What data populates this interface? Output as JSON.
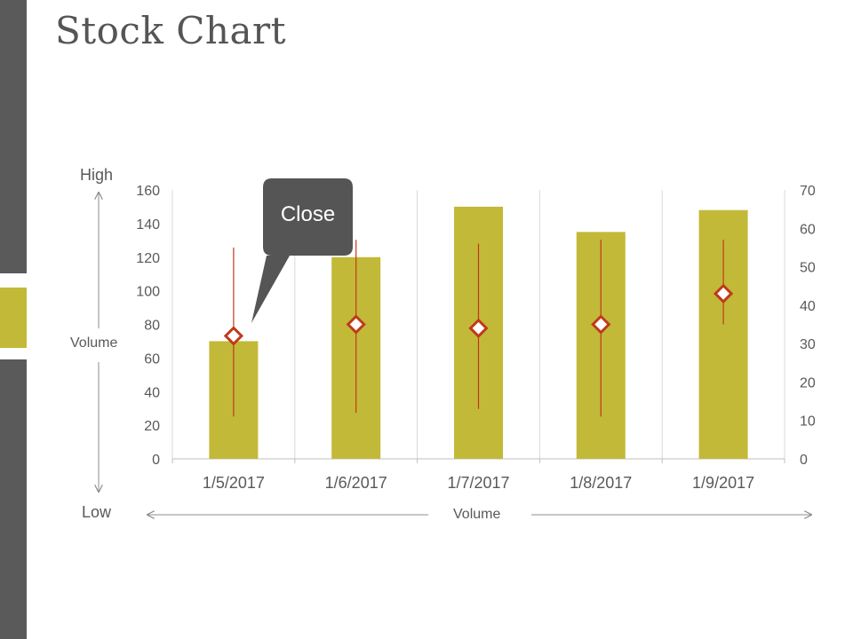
{
  "colors": {
    "bar": "#c2b938",
    "stem": "#c0391b",
    "marker_stroke": "#c0391b",
    "marker_fill": "#ffffff",
    "callout": "#555555",
    "sidebar": "#5a5a5a",
    "sidebar_accent": "#c2b938",
    "gridline": "#d9d9d9",
    "axis_text": "#595959"
  },
  "page": {
    "title": "Stock Chart"
  },
  "annotations": {
    "high": "High",
    "low": "Low",
    "volume_left": "Volume",
    "volume_bottom": "Volume",
    "callout": "Close"
  },
  "chart_data": {
    "type": "bar",
    "categories": [
      "1/5/2017",
      "1/6/2017",
      "1/7/2017",
      "1/8/2017",
      "1/9/2017"
    ],
    "ylim": [
      0,
      160
    ],
    "y2lim": [
      0,
      70
    ],
    "yticks": [
      "0",
      "20",
      "40",
      "60",
      "80",
      "100",
      "120",
      "140",
      "160"
    ],
    "y2ticks": [
      "0",
      "10",
      "20",
      "30",
      "40",
      "50",
      "60",
      "70"
    ],
    "grid": "vertical",
    "series": [
      {
        "type": "bar",
        "axis": "left",
        "values": [
          70,
          120,
          150,
          135,
          148
        ]
      },
      {
        "type": "high-low-close",
        "axis": "right",
        "high": [
          55,
          57,
          56,
          57,
          57
        ],
        "low": [
          11,
          12,
          13,
          11,
          35
        ],
        "close": [
          32,
          35,
          34,
          35,
          43
        ]
      }
    ]
  }
}
